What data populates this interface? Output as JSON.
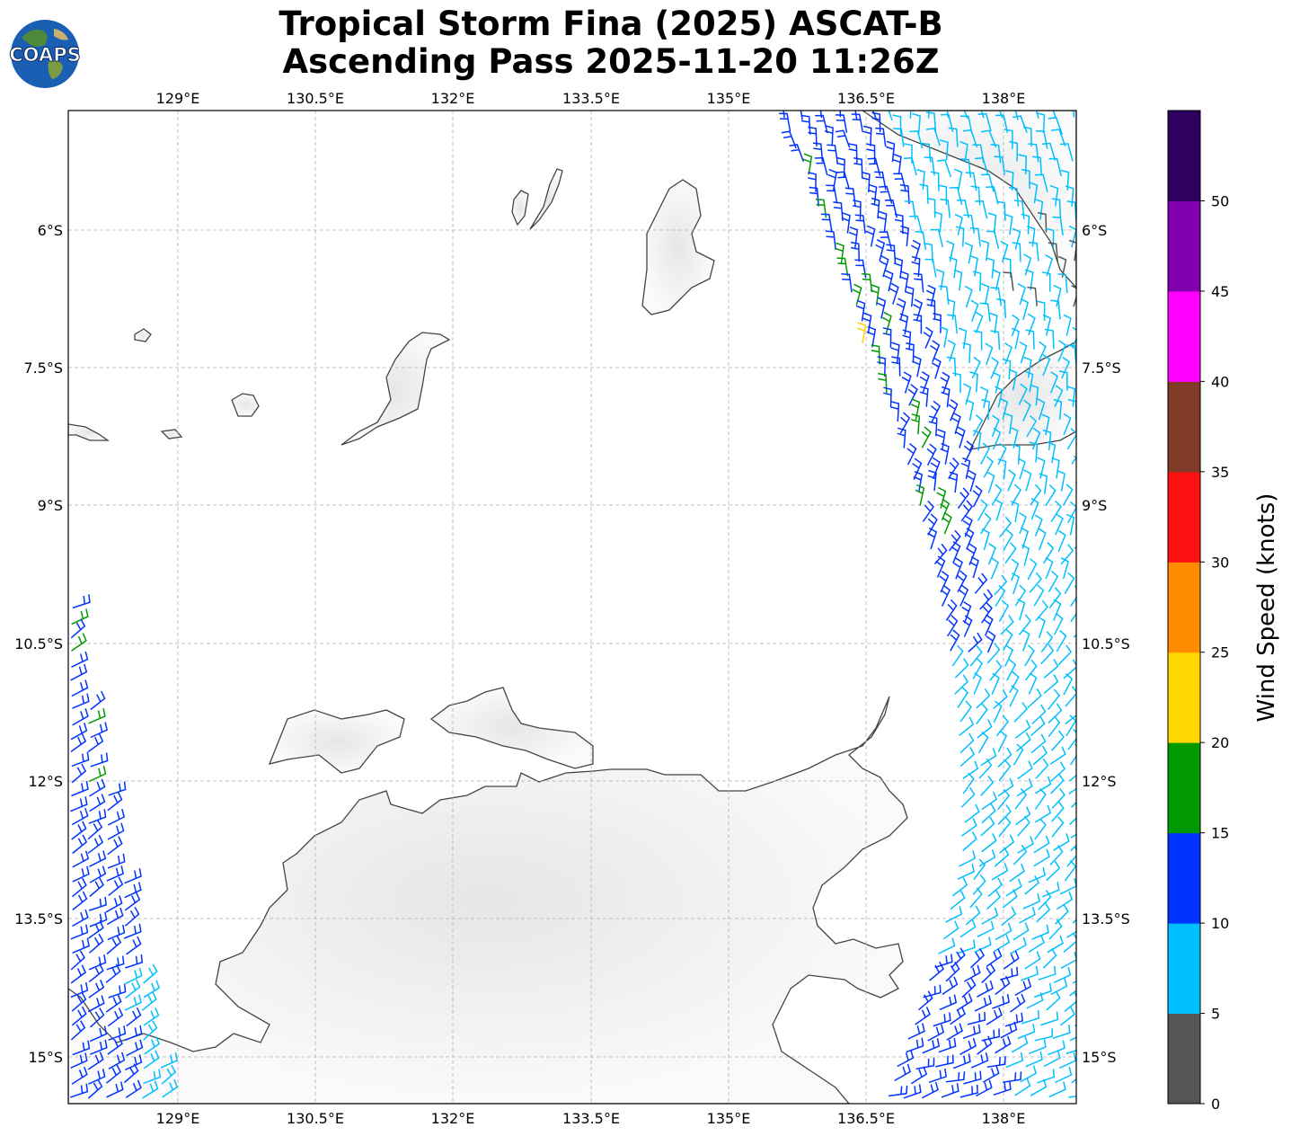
{
  "title_line1": "Tropical Storm Fina (2025) ASCAT-B",
  "title_line2": "Ascending Pass 2025-11-20 11:26Z",
  "logo_text": "COAPS",
  "map": {
    "lon_ticks": [
      "129°E",
      "130.5°E",
      "132°E",
      "133.5°E",
      "135°E",
      "136.5°E",
      "138°E"
    ],
    "lat_ticks": [
      "6°S",
      "7.5°S",
      "9°S",
      "10.5°S",
      "12°S",
      "13.5°S",
      "15°S"
    ]
  },
  "colorbar": {
    "label": "Wind Speed (knots)",
    "ticks": [
      "0",
      "5",
      "10",
      "15",
      "20",
      "25",
      "30",
      "35",
      "40",
      "45",
      "50"
    ],
    "colors": [
      "#555555",
      "#00bfff",
      "#0033ff",
      "#009900",
      "#ffd700",
      "#ff8c00",
      "#ff1111",
      "#803a28",
      "#ff00ff",
      "#8000b0",
      "#2e0060"
    ]
  },
  "legend_colors": {
    "calm": "#555555",
    "light": "#00bfff",
    "moderate": "#0033ff",
    "fresh": "#009900",
    "strong": "#ffd700"
  }
}
